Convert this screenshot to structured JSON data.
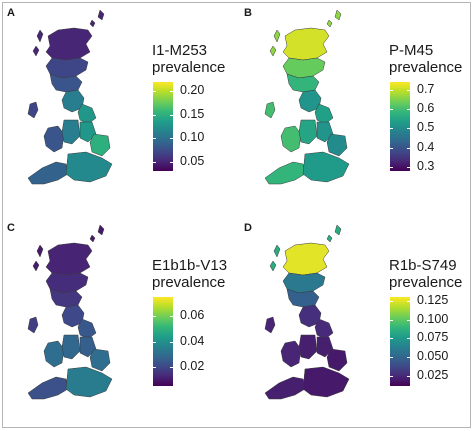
{
  "colors": {
    "viridis": [
      "#440154",
      "#482878",
      "#3e4a89",
      "#31688e",
      "#26828e",
      "#1f9e89",
      "#35b779",
      "#6ece58",
      "#b5de2b",
      "#fde725"
    ]
  },
  "panels": [
    {
      "letter": "A",
      "title_line1": "I1-M253",
      "title_line2": "prevalence",
      "min": 0.03,
      "max": 0.22,
      "ticks": [
        {
          "label": "0.20",
          "value": 0.2
        },
        {
          "label": "0.15",
          "value": 0.15
        },
        {
          "label": "0.10",
          "value": 0.1
        },
        {
          "label": "0.05",
          "value": 0.05
        }
      ],
      "regions": {
        "north_scotland": 0.05,
        "islands": 0.05,
        "central_scotland": 0.07,
        "south_scotland": 0.08,
        "north_england": 0.11,
        "yorkshire": 0.13,
        "wales": 0.08,
        "west_midlands": 0.11,
        "east_midlands": 0.13,
        "east_anglia": 0.15,
        "south_west": 0.09,
        "south_east": 0.12,
        "ireland": 0.07
      }
    },
    {
      "letter": "B",
      "title_line1": "P-M45",
      "title_line2": "prevalence",
      "min": 0.28,
      "max": 0.74,
      "ticks": [
        {
          "label": "0.7",
          "value": 0.7
        },
        {
          "label": "0.6",
          "value": 0.6
        },
        {
          "label": "0.5",
          "value": 0.5
        },
        {
          "label": "0.4",
          "value": 0.4
        },
        {
          "label": "0.3",
          "value": 0.3
        }
      ],
      "regions": {
        "north_scotland": 0.71,
        "islands": 0.66,
        "central_scotland": 0.63,
        "south_scotland": 0.58,
        "north_england": 0.52,
        "yorkshire": 0.54,
        "wales": 0.6,
        "west_midlands": 0.55,
        "east_midlands": 0.52,
        "east_anglia": 0.5,
        "south_west": 0.58,
        "south_east": 0.53,
        "ireland": 0.6
      }
    },
    {
      "letter": "C",
      "title_line1": "E1b1b-V13",
      "title_line2": "prevalence",
      "min": 0.005,
      "max": 0.075,
      "ticks": [
        {
          "label": "0.06",
          "value": 0.06
        },
        {
          "label": "0.04",
          "value": 0.04
        },
        {
          "label": "0.02",
          "value": 0.02
        }
      ],
      "regions": {
        "north_scotland": 0.012,
        "islands": 0.01,
        "central_scotland": 0.014,
        "south_scotland": 0.016,
        "north_england": 0.02,
        "yorkshire": 0.024,
        "wales": 0.03,
        "west_midlands": 0.028,
        "east_midlands": 0.026,
        "east_anglia": 0.03,
        "south_west": 0.022,
        "south_east": 0.034,
        "ireland": 0.018
      }
    },
    {
      "letter": "D",
      "title_line1": "R1b-S749",
      "title_line2": "prevalence",
      "min": 0.012,
      "max": 0.13,
      "ticks": [
        {
          "label": "0.125",
          "value": 0.125
        },
        {
          "label": "0.100",
          "value": 0.1
        },
        {
          "label": "0.075",
          "value": 0.075
        },
        {
          "label": "0.050",
          "value": 0.05
        },
        {
          "label": "0.025",
          "value": 0.025
        }
      ],
      "regions": {
        "north_scotland": 0.125,
        "islands": 0.085,
        "central_scotland": 0.06,
        "south_scotland": 0.048,
        "north_england": 0.028,
        "yorkshire": 0.026,
        "wales": 0.024,
        "west_midlands": 0.022,
        "east_midlands": 0.022,
        "east_anglia": 0.02,
        "south_west": 0.022,
        "south_east": 0.02,
        "ireland": 0.024
      }
    }
  ]
}
